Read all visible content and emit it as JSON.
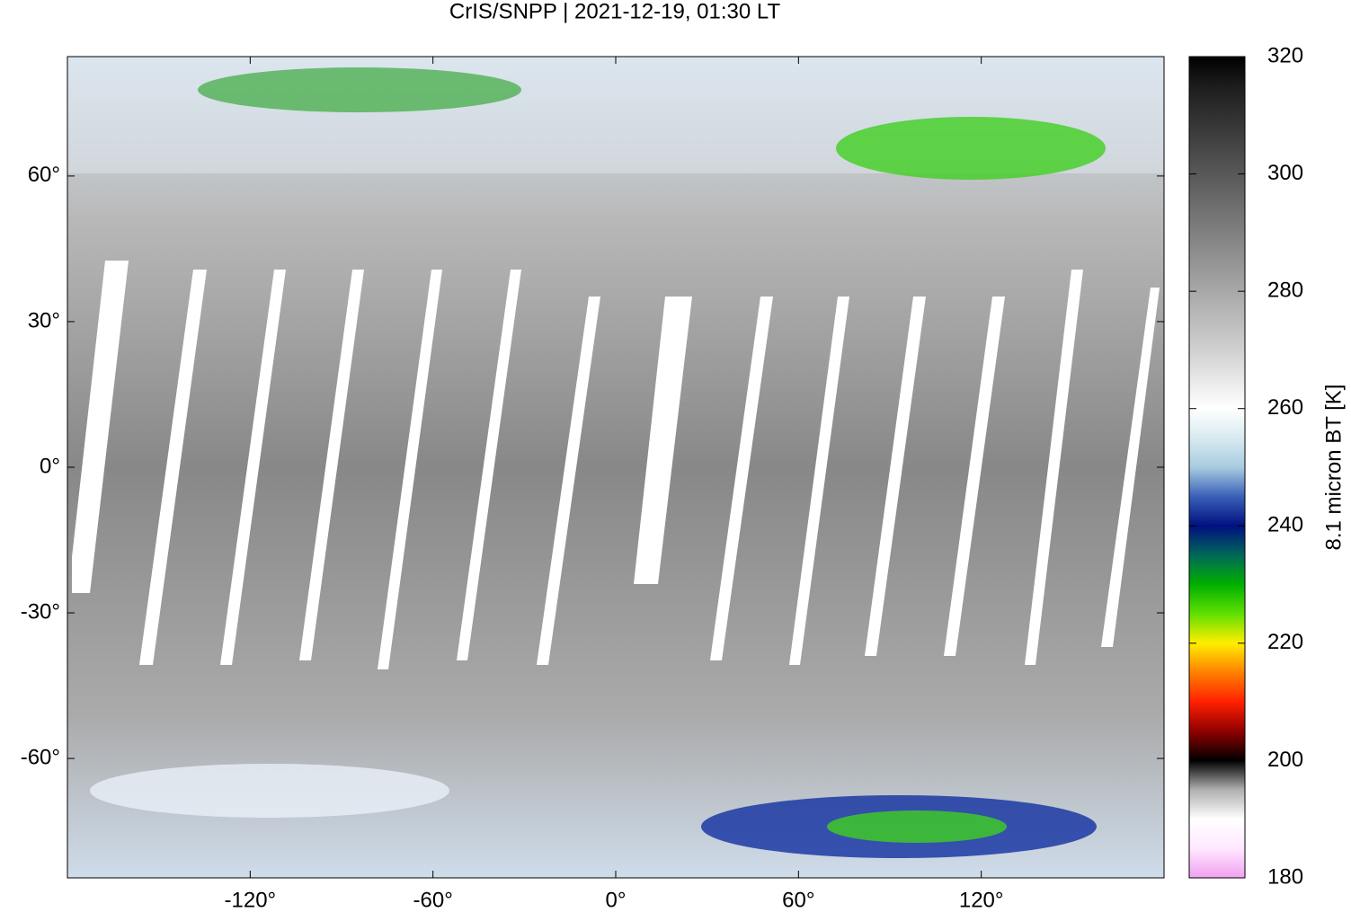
{
  "chart_data": {
    "type": "heatmap-map",
    "title": "CrIS/SNPP | 2021-12-19, 01:30 LT",
    "xlim": [
      -180,
      180
    ],
    "ylim": [
      -84.6,
      84.6
    ],
    "xticks": [
      {
        "value": -120,
        "label": "-120°"
      },
      {
        "value": -60,
        "label": "-60°"
      },
      {
        "value": 0,
        "label": "0°"
      },
      {
        "value": 60,
        "label": "60°"
      },
      {
        "value": 120,
        "label": "120°"
      }
    ],
    "yticks": [
      {
        "value": 60,
        "label": "60°"
      },
      {
        "value": 30,
        "label": "30°"
      },
      {
        "value": 0,
        "label": "0°"
      },
      {
        "value": -30,
        "label": "-30°"
      },
      {
        "value": -60,
        "label": "-60°"
      }
    ],
    "colorbar": {
      "label": "8.1 micron BT [K]",
      "clim": [
        180,
        320
      ],
      "ticks": [
        180,
        200,
        220,
        240,
        260,
        280,
        300,
        320
      ],
      "colormap": [
        "#f0a0f0",
        "#ffe8ff",
        "#ffffff",
        "#b0b0b0",
        "#000000",
        "#900000",
        "#ff2000",
        "#ff8000",
        "#ffee00",
        "#60e000",
        "#00b000",
        "#006858",
        "#001080",
        "#3a60b8",
        "#a8cce0",
        "#d8eaf0",
        "#ffffff",
        "#e8e8e8",
        "#d0d0d0",
        "#bcbcbc",
        "#a8a8a8",
        "#949494",
        "#808080",
        "#6c6c6c",
        "#585858",
        "#444444",
        "#303030",
        "#1c1c1c",
        "#000000"
      ]
    }
  }
}
